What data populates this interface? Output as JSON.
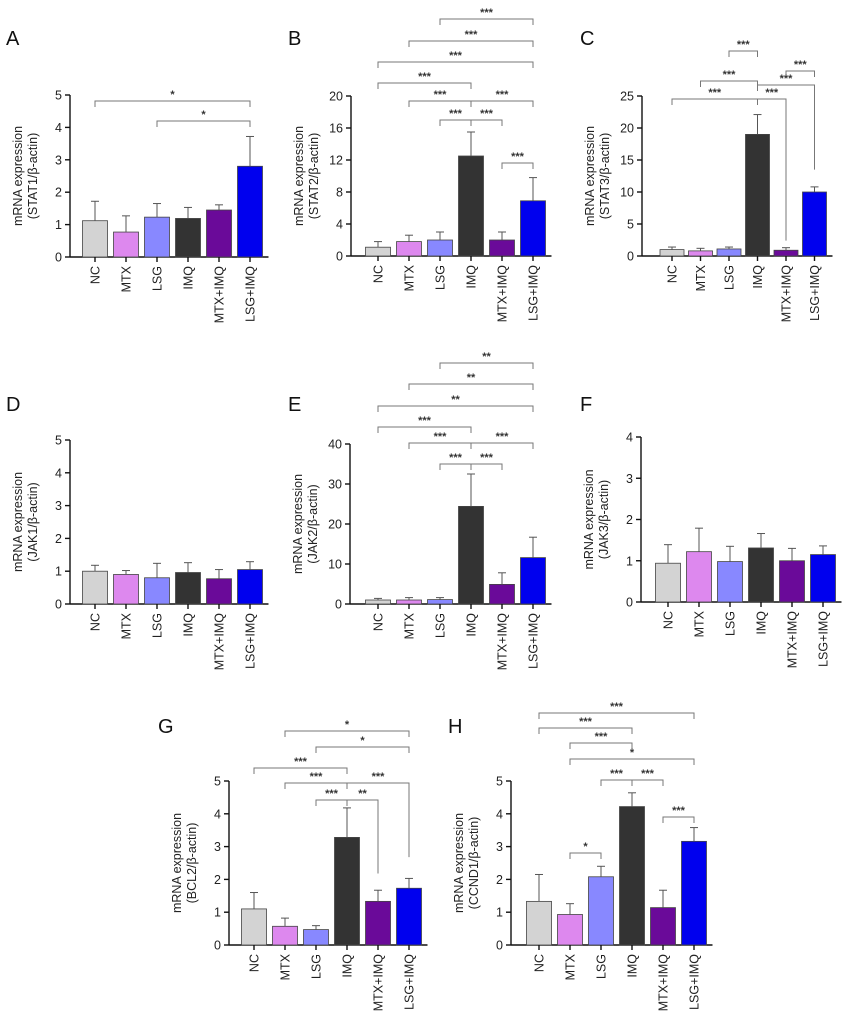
{
  "figure": {
    "categories": [
      "NC",
      "MTX",
      "LSG",
      "IMQ",
      "MTX+IMQ",
      "LSG+IMQ"
    ],
    "colors": [
      "#d3d3d3",
      "#dd88ee",
      "#8888ff",
      "#333333",
      "#6a0a99",
      "#0000ee"
    ]
  },
  "chart_data": [
    {
      "panel": "A",
      "type": "bar",
      "title": "",
      "ylabel": [
        "mRNA expression",
        "(STAT1/β-actin)"
      ],
      "ylim": [
        0,
        5
      ],
      "yticks": [
        0,
        1,
        2,
        3,
        4,
        5
      ],
      "categories": [
        "NC",
        "MTX",
        "LSG",
        "IMQ",
        "MTX+IMQ",
        "LSG+IMQ"
      ],
      "values": [
        1.12,
        0.77,
        1.23,
        1.19,
        1.45,
        2.8
      ],
      "errors": [
        0.6,
        0.5,
        0.42,
        0.34,
        0.16,
        0.92
      ],
      "significance": [
        {
          "from": 0,
          "to": 5,
          "label": "*"
        },
        {
          "from": 2,
          "to": 5,
          "label": "*"
        }
      ]
    },
    {
      "panel": "B",
      "type": "bar",
      "title": "",
      "ylabel": [
        "mRNA expression",
        "(STAT2/β-actin)"
      ],
      "ylim": [
        0,
        20
      ],
      "yticks": [
        0,
        4,
        8,
        12,
        16,
        20
      ],
      "categories": [
        "NC",
        "MTX",
        "LSG",
        "IMQ",
        "MTX+IMQ",
        "LSG+IMQ"
      ],
      "values": [
        1.1,
        1.8,
        2.0,
        12.5,
        2.0,
        6.9
      ],
      "errors": [
        0.7,
        0.8,
        1.0,
        3.0,
        1.0,
        2.9
      ],
      "significance": [
        {
          "from": 2,
          "to": 5,
          "label": "***"
        },
        {
          "from": 1,
          "to": 5,
          "label": "***"
        },
        {
          "from": 0,
          "to": 5,
          "label": "***"
        },
        {
          "from": 0,
          "to": 3,
          "label": "***"
        },
        {
          "from": 1,
          "to": 3,
          "label": "***"
        },
        {
          "from": 3,
          "to": 5,
          "label": "***"
        },
        {
          "from": 2,
          "to": 3,
          "label": "***"
        },
        {
          "from": 3,
          "to": 4,
          "label": "***"
        },
        {
          "from": 4,
          "to": 5,
          "label": "***"
        }
      ]
    },
    {
      "panel": "C",
      "type": "bar",
      "title": "",
      "ylabel": [
        "mRNA expression",
        "(STAT3/β-actin)"
      ],
      "ylim": [
        0,
        25
      ],
      "yticks": [
        0,
        5,
        10,
        15,
        20,
        25
      ],
      "categories": [
        "NC",
        "MTX",
        "LSG",
        "IMQ",
        "MTX+IMQ",
        "LSG+IMQ"
      ],
      "values": [
        1.0,
        0.8,
        1.1,
        19.0,
        0.9,
        10.0
      ],
      "errors": [
        0.4,
        0.4,
        0.3,
        3.1,
        0.4,
        0.8
      ],
      "significance": [
        {
          "from": 2,
          "to": 3,
          "label": "***"
        },
        {
          "from": 4,
          "to": 5,
          "label": "***"
        },
        {
          "from": 1,
          "to": 3,
          "label": "***"
        },
        {
          "from": 3,
          "to": 5,
          "label": "***"
        },
        {
          "from": 0,
          "to": 3,
          "label": "***"
        },
        {
          "from": 3,
          "to": 4,
          "label": "***"
        }
      ]
    },
    {
      "panel": "D",
      "type": "bar",
      "title": "",
      "ylabel": [
        "mRNA expression",
        "(JAK1/β-actin)"
      ],
      "ylim": [
        0,
        5
      ],
      "yticks": [
        0,
        1,
        2,
        3,
        4,
        5
      ],
      "categories": [
        "NC",
        "MTX",
        "LSG",
        "IMQ",
        "MTX+IMQ",
        "LSG+IMQ"
      ],
      "values": [
        1.0,
        0.9,
        0.8,
        0.96,
        0.77,
        1.05
      ],
      "errors": [
        0.18,
        0.12,
        0.44,
        0.3,
        0.28,
        0.24
      ],
      "significance": []
    },
    {
      "panel": "E",
      "type": "bar",
      "title": "",
      "ylabel": [
        "mRNA expression",
        "(JAK2/β-actin)"
      ],
      "ylim": [
        0,
        40
      ],
      "yticks": [
        0,
        10,
        20,
        30,
        40
      ],
      "categories": [
        "NC",
        "MTX",
        "LSG",
        "IMQ",
        "MTX+IMQ",
        "LSG+IMQ"
      ],
      "values": [
        1.0,
        1.0,
        1.1,
        24.4,
        4.9,
        11.6
      ],
      "errors": [
        0.4,
        0.6,
        0.5,
        8.1,
        2.9,
        5.1
      ],
      "significance": [
        {
          "from": 2,
          "to": 5,
          "label": "**"
        },
        {
          "from": 1,
          "to": 5,
          "label": "**"
        },
        {
          "from": 0,
          "to": 5,
          "label": "**"
        },
        {
          "from": 0,
          "to": 3,
          "label": "***"
        },
        {
          "from": 1,
          "to": 3,
          "label": "***"
        },
        {
          "from": 3,
          "to": 5,
          "label": "***"
        },
        {
          "from": 2,
          "to": 3,
          "label": "***"
        },
        {
          "from": 3,
          "to": 4,
          "label": "***"
        }
      ]
    },
    {
      "panel": "F",
      "type": "bar",
      "title": "",
      "ylabel": [
        "mRNA expression",
        "(JAK3/β-actin)"
      ],
      "ylim": [
        0,
        4
      ],
      "yticks": [
        0,
        1,
        2,
        3,
        4
      ],
      "categories": [
        "NC",
        "MTX",
        "LSG",
        "IMQ",
        "MTX+IMQ",
        "LSG+IMQ"
      ],
      "values": [
        0.94,
        1.22,
        0.98,
        1.31,
        1.0,
        1.15
      ],
      "errors": [
        0.45,
        0.57,
        0.37,
        0.35,
        0.3,
        0.21
      ],
      "significance": []
    },
    {
      "panel": "G",
      "type": "bar",
      "title": "",
      "ylabel": [
        "mRNA expression",
        "(BCL2/β-actin)"
      ],
      "ylim": [
        0,
        5
      ],
      "yticks": [
        0,
        1,
        2,
        3,
        4,
        5
      ],
      "categories": [
        "NC",
        "MTX",
        "LSG",
        "IMQ",
        "MTX+IMQ",
        "LSG+IMQ"
      ],
      "values": [
        1.1,
        0.57,
        0.47,
        3.28,
        1.33,
        1.73
      ],
      "errors": [
        0.5,
        0.25,
        0.12,
        0.9,
        0.34,
        0.3
      ],
      "significance": [
        {
          "from": 1,
          "to": 5,
          "label": "*"
        },
        {
          "from": 2,
          "to": 5,
          "label": "*"
        },
        {
          "from": 0,
          "to": 3,
          "label": "***"
        },
        {
          "from": 1,
          "to": 3,
          "label": "***"
        },
        {
          "from": 3,
          "to": 5,
          "label": "***"
        },
        {
          "from": 2,
          "to": 3,
          "label": "***"
        },
        {
          "from": 3,
          "to": 4,
          "label": "**"
        }
      ]
    },
    {
      "panel": "H",
      "type": "bar",
      "title": "",
      "ylabel": [
        "mRNA expression",
        "(CCND1/β-actin)"
      ],
      "ylim": [
        0,
        5
      ],
      "yticks": [
        0,
        1,
        2,
        3,
        4,
        5
      ],
      "categories": [
        "NC",
        "MTX",
        "LSG",
        "IMQ",
        "MTX+IMQ",
        "LSG+IMQ"
      ],
      "values": [
        1.33,
        0.93,
        2.08,
        4.22,
        1.14,
        3.16
      ],
      "errors": [
        0.82,
        0.33,
        0.32,
        0.42,
        0.53,
        0.42
      ],
      "significance": [
        {
          "from": 0,
          "to": 5,
          "label": "***"
        },
        {
          "from": 0,
          "to": 3,
          "label": "***"
        },
        {
          "from": 1,
          "to": 3,
          "label": "***"
        },
        {
          "from": 1,
          "to": 5,
          "label": "*"
        },
        {
          "from": 2,
          "to": 3,
          "label": "***"
        },
        {
          "from": 3,
          "to": 4,
          "label": "***"
        },
        {
          "from": 1,
          "to": 2,
          "label": "*"
        },
        {
          "from": 4,
          "to": 5,
          "label": "***"
        }
      ]
    }
  ]
}
